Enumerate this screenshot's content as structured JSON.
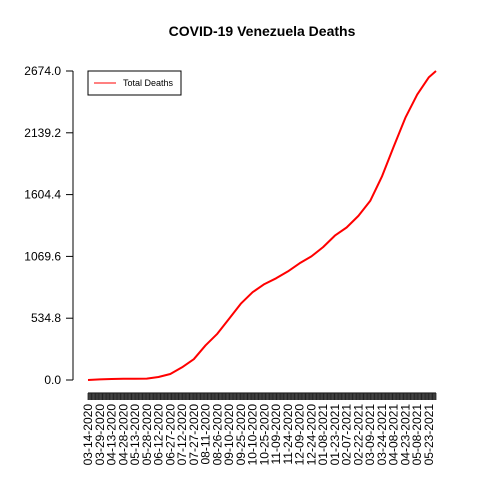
{
  "chart_data": {
    "type": "line",
    "title": "COVID-19 Venezuela Deaths",
    "xlabel": "",
    "ylabel": "",
    "ylim": [
      0,
      2674.0
    ],
    "y_ticks": [
      "0.0",
      "534.8",
      "1069.6",
      "1604.4",
      "2139.2",
      "2674.0"
    ],
    "x_tick_labels": [
      "03-14-2020",
      "03-29-2020",
      "04-13-2020",
      "04-28-2020",
      "05-13-2020",
      "05-28-2020",
      "06-12-2020",
      "06-27-2020",
      "07-12-2020",
      "07-27-2020",
      "08-11-2020",
      "08-26-2020",
      "09-10-2020",
      "09-25-2020",
      "10-10-2020",
      "10-25-2020",
      "11-09-2020",
      "11-24-2020",
      "12-09-2020",
      "12-24-2020",
      "01-08-2021",
      "01-23-2021",
      "02-07-2021",
      "02-22-2021",
      "03-09-2021",
      "03-24-2021",
      "04-08-2021",
      "04-23-2021",
      "05-08-2021",
      "05-23-2021"
    ],
    "legend": {
      "position": "top-left",
      "entries": [
        "Total Deaths"
      ]
    },
    "grid": false,
    "series": [
      {
        "name": "Total Deaths",
        "color": "#ff0000",
        "x": [
          "03-14-2020",
          "03-29-2020",
          "04-13-2020",
          "04-28-2020",
          "05-13-2020",
          "05-28-2020",
          "06-12-2020",
          "06-27-2020",
          "07-12-2020",
          "07-27-2020",
          "08-11-2020",
          "08-26-2020",
          "09-10-2020",
          "09-25-2020",
          "10-10-2020",
          "10-25-2020",
          "11-09-2020",
          "11-24-2020",
          "12-09-2020",
          "12-24-2020",
          "01-08-2021",
          "01-23-2021",
          "02-07-2021",
          "02-22-2021",
          "03-09-2021",
          "03-24-2021",
          "04-08-2021",
          "04-23-2021",
          "05-08-2021",
          "05-23-2021",
          "06-01-2021"
        ],
        "values": [
          0,
          5,
          9,
          10,
          10,
          12,
          26,
          52,
          110,
          180,
          300,
          400,
          530,
          660,
          760,
          830,
          880,
          940,
          1010,
          1070,
          1150,
          1250,
          1320,
          1420,
          1550,
          1760,
          2020,
          2270,
          2470,
          2620,
          2674
        ]
      }
    ]
  }
}
